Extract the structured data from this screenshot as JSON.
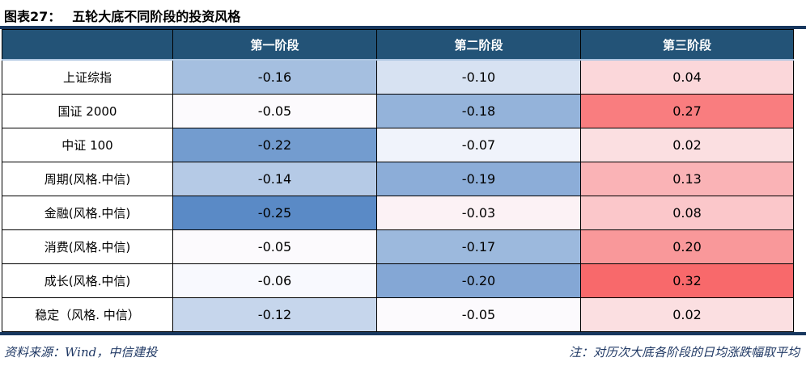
{
  "page": {
    "exhibit_label": "图表27：",
    "title": "五轮大底不同阶段的投资风格"
  },
  "chart_data": {
    "type": "heatmap",
    "title": "图表27：五轮大底不同阶段的投资风格",
    "columns": [
      "第一阶段",
      "第二阶段",
      "第三阶段"
    ],
    "rows": [
      "上证综指",
      "国证 2000",
      "中证 100",
      "周期(风格.中信)",
      "金融(风格.中信)",
      "消费(风格.中信)",
      "成长(风格.中信)",
      "稳定（风格. 中信）"
    ],
    "series": [
      {
        "name": "上证综指",
        "values": [
          -0.16,
          -0.1,
          0.04
        ]
      },
      {
        "name": "国证 2000",
        "values": [
          -0.05,
          -0.18,
          0.27
        ]
      },
      {
        "name": "中证 100",
        "values": [
          -0.22,
          -0.07,
          0.02
        ]
      },
      {
        "name": "周期(风格.中信)",
        "values": [
          -0.14,
          -0.19,
          0.13
        ]
      },
      {
        "name": "金融(风格.中信)",
        "values": [
          -0.25,
          -0.03,
          0.08
        ]
      },
      {
        "name": "消费(风格.中信)",
        "values": [
          -0.05,
          -0.17,
          0.2
        ]
      },
      {
        "name": "成长(风格.中信)",
        "values": [
          -0.06,
          -0.2,
          0.32
        ]
      },
      {
        "name": "稳定（风格. 中信）",
        "values": [
          -0.12,
          -0.05,
          0.02
        ]
      }
    ],
    "value_decimals": 2,
    "colorscale": {
      "min_value": -0.25,
      "min_color": "#5A8AC6",
      "mid_value": -0.055,
      "mid_color": "#FCFCFF",
      "max_value": 0.32,
      "max_color": "#F8696B"
    }
  },
  "colors": {
    "header_bg": "#235377",
    "header_text": "#FFFFFF",
    "rule": "#17375E",
    "grid": "#000000",
    "header_divider": "#AEC6E2",
    "note_text": "#1F3864"
  },
  "footer": {
    "source": "资料来源：Wind，中信建投",
    "note": "注：对历次大底各阶段的日均涨跌幅取平均"
  }
}
